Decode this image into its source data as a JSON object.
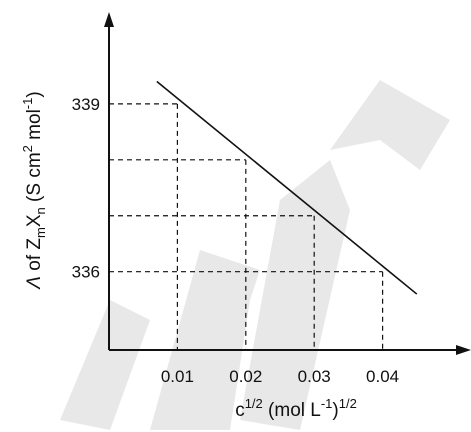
{
  "chart_data": {
    "type": "line",
    "title": "",
    "xlabel": "c1/2 (mol L-1)1/2",
    "ylabel": "Λ of ZmXn (S cm2 mol-1)",
    "x_ticks": [
      "0.01",
      "0.02",
      "0.03",
      "0.04"
    ],
    "y_ticks": [
      "339",
      "336"
    ],
    "xlim": [
      0,
      0.05
    ],
    "ylim": [
      334.6,
      340.5
    ],
    "grid": "dashed reference lines from the line to each axis at x = 0.01, 0.02, 0.03, 0.04",
    "legend": "none",
    "series": [
      {
        "x": [
          0.007,
          0.045
        ],
        "y": [
          339.4,
          335.6
        ]
      }
    ],
    "reference_points": [
      {
        "x": 0.01,
        "y": 339
      },
      {
        "x": 0.02,
        "y": 338
      },
      {
        "x": 0.03,
        "y": 337
      },
      {
        "x": 0.04,
        "y": 336
      }
    ],
    "line_color": "#111111"
  }
}
